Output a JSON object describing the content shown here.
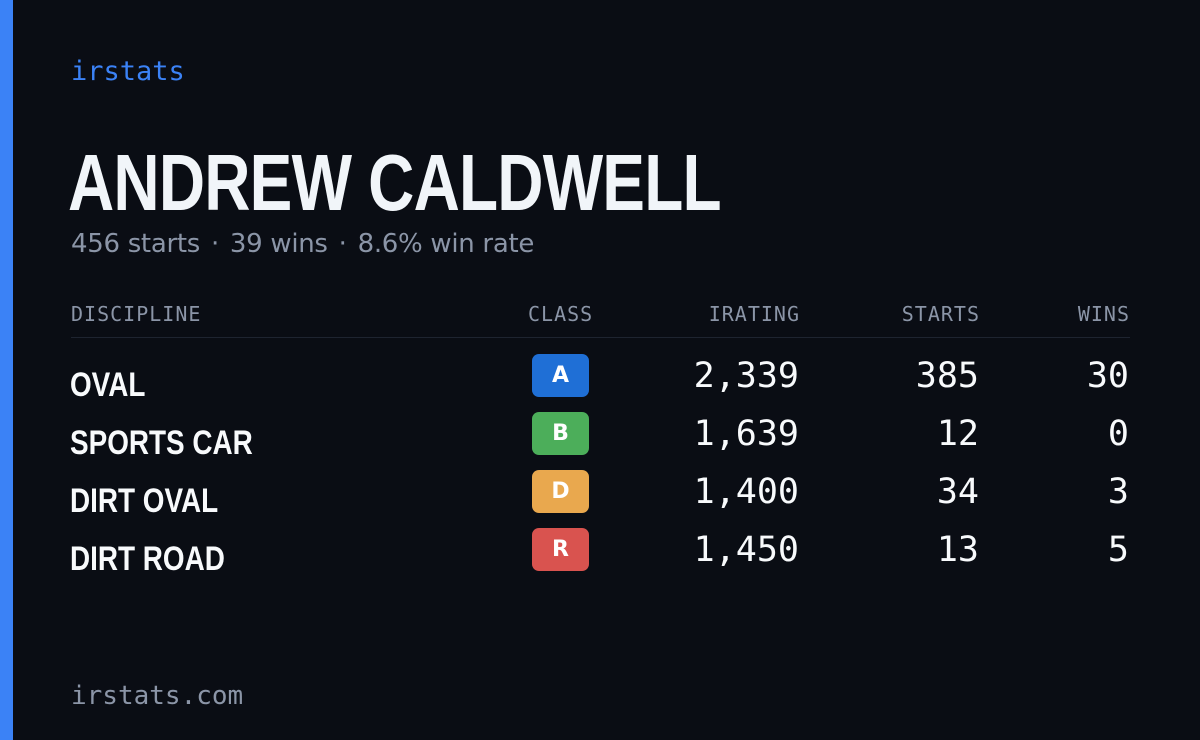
{
  "brand": "irstats",
  "driver": {
    "name": "ANDREW CALDWELL",
    "starts": "456 starts",
    "wins": "39 wins",
    "win_rate": "8.6% win rate",
    "separator": "·"
  },
  "table": {
    "headers": {
      "discipline": "DISCIPLINE",
      "class": "CLASS",
      "irating": "IRATING",
      "starts": "STARTS",
      "wins": "WINS"
    },
    "rows": [
      {
        "discipline": "OVAL",
        "class": "A",
        "class_color": "#1f6fd6",
        "irating": "2,339",
        "starts": "385",
        "wins": "30"
      },
      {
        "discipline": "SPORTS CAR",
        "class": "B",
        "class_color": "#4cae5a",
        "irating": "1,639",
        "starts": "12",
        "wins": "0"
      },
      {
        "discipline": "DIRT OVAL",
        "class": "D",
        "class_color": "#e9a84e",
        "irating": "1,400",
        "starts": "34",
        "wins": "3"
      },
      {
        "discipline": "DIRT ROAD",
        "class": "R",
        "class_color": "#d9534f",
        "irating": "1,450",
        "starts": "13",
        "wins": "5"
      }
    ]
  },
  "footer": "irstats.com",
  "colors": {
    "accent": "#3b82f6",
    "background": "#0a0d14",
    "muted_text": "#8b95a7",
    "text": "#f8fafc"
  }
}
